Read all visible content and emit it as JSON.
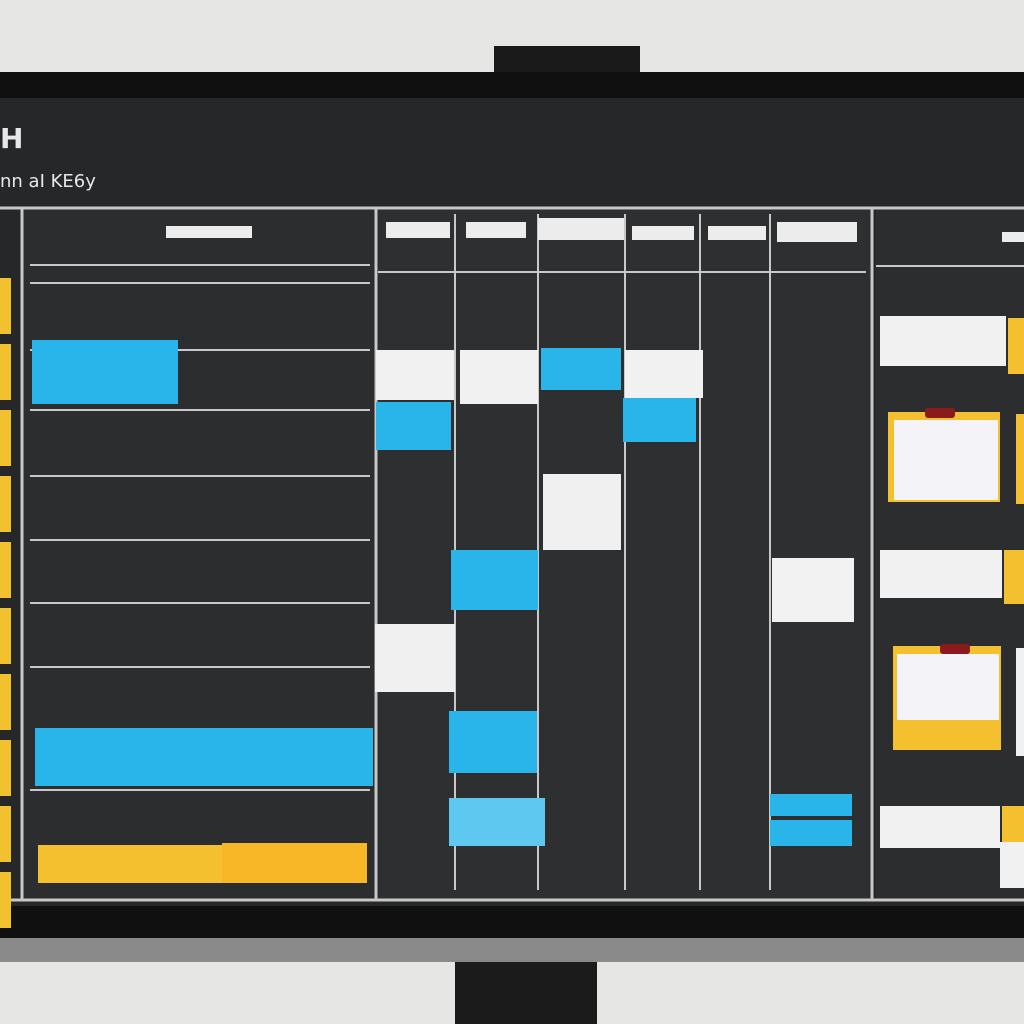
{
  "header": {
    "title": "H",
    "subtitle": "nn aI KE6y"
  }
}
